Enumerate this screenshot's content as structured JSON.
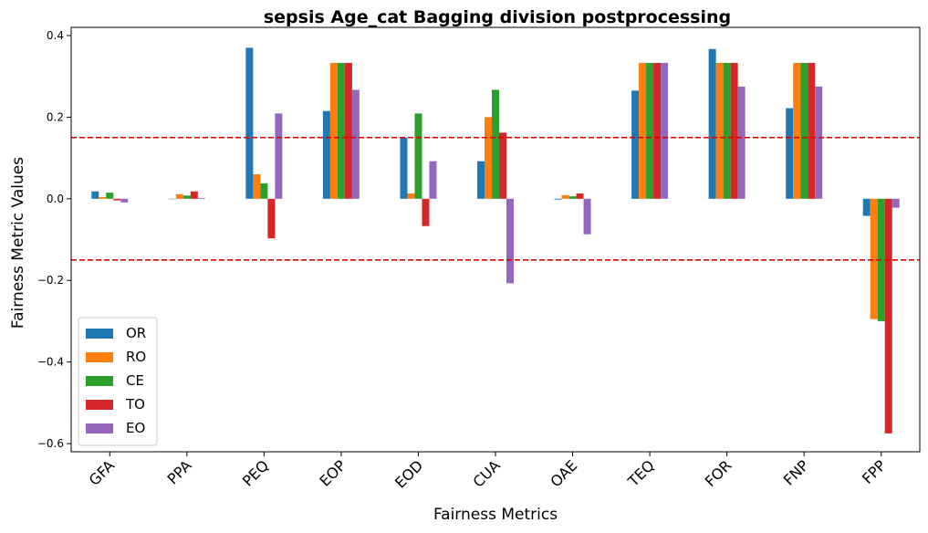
{
  "chart_data": {
    "type": "bar",
    "title": "sepsis Age_cat Bagging division postprocessing",
    "xlabel": "Fairness Metrics",
    "ylabel": "Fairness Metric Values",
    "categories": [
      "GFA",
      "PPA",
      "PEQ",
      "EOP",
      "EOD",
      "CUA",
      "OAE",
      "TEQ",
      "FOR",
      "FNP",
      "FPP"
    ],
    "ylim": [
      -0.62,
      0.42
    ],
    "yticks": [
      -0.6,
      -0.4,
      -0.2,
      0.0,
      0.2,
      0.4
    ],
    "ytick_labels": [
      "−0.6",
      "−0.4",
      "−0.2",
      "0.0",
      "0.2",
      "0.4"
    ],
    "thresholds": [
      0.15,
      -0.15
    ],
    "threshold_color": "#e00000",
    "grid": false,
    "legend_position": "lower-left",
    "series": [
      {
        "name": "OR",
        "color": "#1f77b4",
        "values": [
          0.018,
          0.0,
          0.37,
          0.215,
          0.15,
          0.092,
          -0.002,
          0.265,
          0.367,
          0.222,
          -0.042
        ]
      },
      {
        "name": "RO",
        "color": "#ff7f0e",
        "values": [
          0.004,
          0.011,
          0.06,
          0.333,
          0.013,
          0.2,
          0.009,
          0.333,
          0.333,
          0.333,
          -0.295
        ]
      },
      {
        "name": "CE",
        "color": "#2ca02c",
        "values": [
          0.015,
          0.008,
          0.038,
          0.333,
          0.209,
          0.267,
          0.006,
          0.333,
          0.333,
          0.333,
          -0.3
        ]
      },
      {
        "name": "TO",
        "color": "#d62728",
        "values": [
          -0.004,
          0.018,
          -0.097,
          0.333,
          -0.067,
          0.162,
          0.013,
          0.333,
          0.333,
          0.333,
          -0.575
        ]
      },
      {
        "name": "EO",
        "color": "#9467bd",
        "values": [
          -0.009,
          0.002,
          0.209,
          0.267,
          0.092,
          -0.207,
          -0.087,
          0.333,
          0.275,
          0.275,
          -0.022
        ]
      }
    ]
  }
}
